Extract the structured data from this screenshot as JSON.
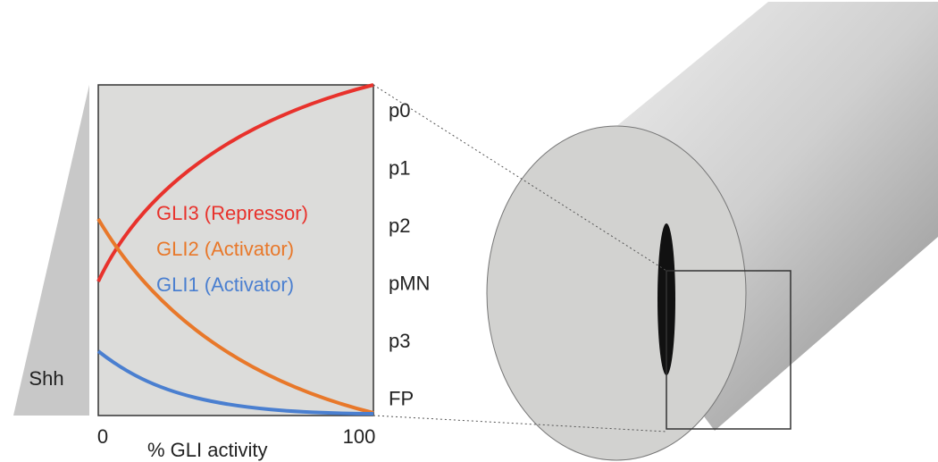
{
  "gradient_label": "Shh",
  "legend": [
    {
      "label": "GLI3 (Repressor)",
      "color": "#e8322c"
    },
    {
      "label": "GLI2 (Activator)",
      "color": "#e8782a"
    },
    {
      "label": "GLI1 (Activator)",
      "color": "#4a7fd0"
    }
  ],
  "domains": [
    "p0",
    "p1",
    "p2",
    "pMN",
    "p3",
    "FP"
  ],
  "x_axis": {
    "start": "0",
    "end": "100",
    "label": "% GLI activity"
  }
}
